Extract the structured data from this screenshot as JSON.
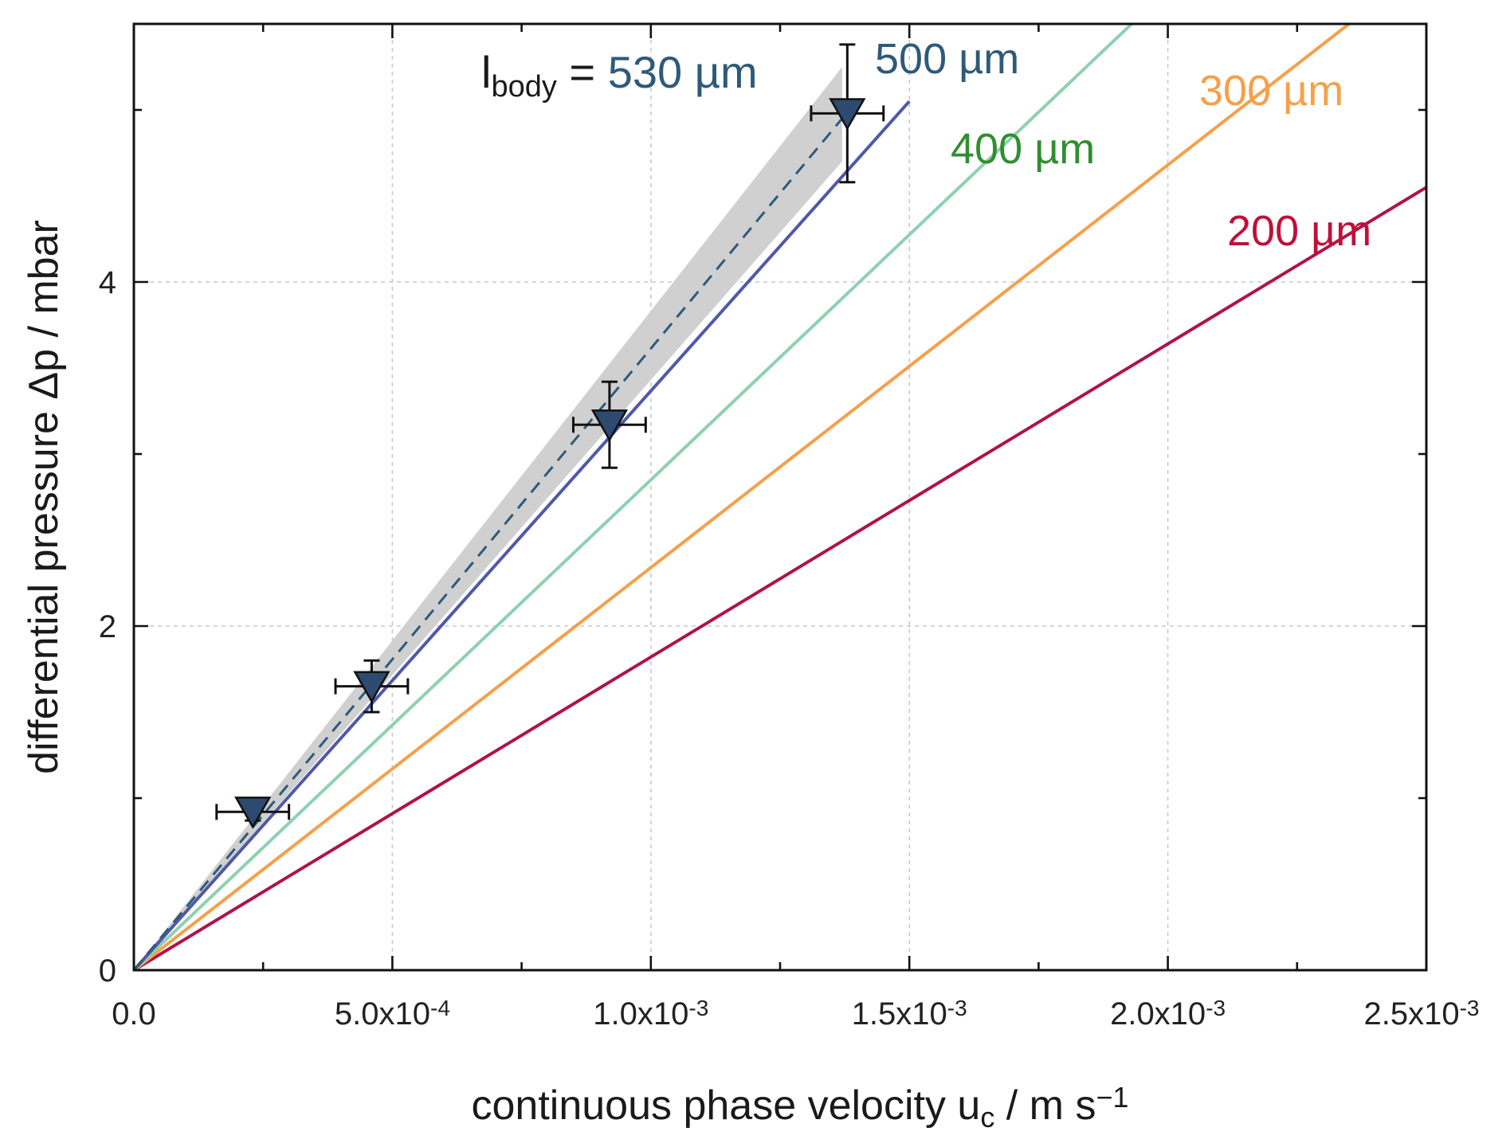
{
  "chart_data": {
    "type": "line",
    "title": "",
    "xlabel": {
      "main": "continuous phase velocity u",
      "sub": "c",
      "unit": " /  m s",
      "sup": "−1"
    },
    "ylabel": "differential pressure Δp  /  mbar",
    "xlim": [
      0,
      0.0025
    ],
    "ylim": [
      0,
      5.5
    ],
    "x_ticks": [
      0,
      0.0005,
      0.001,
      0.0015,
      0.002,
      0.0025
    ],
    "x_tick_labels": [
      {
        "base": "0.0",
        "exp": ""
      },
      {
        "base": "5.0x10",
        "exp": "-4"
      },
      {
        "base": "1.0x10",
        "exp": "-3"
      },
      {
        "base": "1.5x10",
        "exp": "-3"
      },
      {
        "base": "2.0x10",
        "exp": "-3"
      },
      {
        "base": "2.5x10",
        "exp": "-3"
      }
    ],
    "y_ticks": [
      0,
      2,
      4
    ],
    "y_tick_labels": [
      "0",
      "2",
      "4"
    ],
    "grid": true,
    "series": [
      {
        "name": "200 µm",
        "color": "#b0124a",
        "line": "solid",
        "x": [
          0,
          0.0025
        ],
        "y": [
          0,
          4.55
        ]
      },
      {
        "name": "300 µm",
        "color": "#f5a04a",
        "line": "solid",
        "x": [
          0,
          0.0025
        ],
        "y": [
          0,
          5.85
        ]
      },
      {
        "name": "400 µm",
        "color": "#8fd0b0",
        "line": "solid",
        "x": [
          0,
          0.00193
        ],
        "y": [
          0,
          5.5
        ]
      },
      {
        "name": "500 µm",
        "color": "#5058a8",
        "line": "solid",
        "x": [
          0,
          0.0015
        ],
        "y": [
          0,
          5.05
        ]
      },
      {
        "name": "530 µm",
        "color": "#2e5a7a",
        "line": "dashed",
        "x": [
          0,
          0.00137
        ],
        "y": [
          0,
          4.95
        ],
        "band": {
          "color": "#d0d0d0",
          "x": [
            0,
            0.00137
          ],
          "y_low": [
            0,
            4.7
          ],
          "y_high": [
            0,
            5.25
          ]
        }
      }
    ],
    "measurements": {
      "marker": "triangle-down",
      "color": "#2e4a70",
      "points": [
        {
          "x": 0.00023,
          "y": 0.92,
          "xerr": 7e-05,
          "yerr": 0.05
        },
        {
          "x": 0.00046,
          "y": 1.65,
          "xerr": 7e-05,
          "yerr": 0.15
        },
        {
          "x": 0.00092,
          "y": 3.17,
          "xerr": 7e-05,
          "yerr": 0.25
        },
        {
          "x": 0.00138,
          "y": 4.98,
          "xerr": 7e-05,
          "yerr": 0.4
        }
      ]
    },
    "annotations": {
      "l_body_main": "l",
      "l_body_sub": "body",
      "l_body_eq": " = ",
      "l_body_value": "530 µm",
      "value_color": "#2e5a7a",
      "series_label_colors": {
        "200 µm": "#c0103a",
        "300 µm": "#f5a04a",
        "400 µm": "#2f8f2f",
        "500 µm": "#2e5a7a"
      }
    }
  }
}
